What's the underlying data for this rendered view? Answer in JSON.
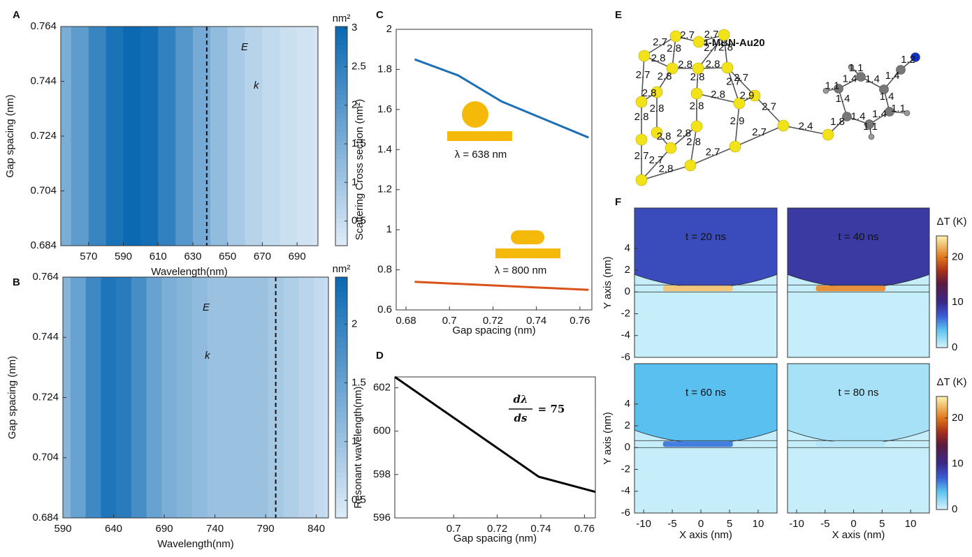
{
  "panel_labels": [
    "A",
    "B",
    "C",
    "D",
    "E",
    "F"
  ],
  "chart_data": [
    {
      "type": "heatmap",
      "xlabel": "Wavelength(nm)",
      "ylabel": "Gap spacing (nm)",
      "x": [
        555,
        565,
        575,
        585,
        595,
        605,
        615,
        625,
        635,
        645,
        655,
        665,
        675,
        685,
        695,
        702
      ],
      "values": [
        1.5,
        1.9,
        2.4,
        2.8,
        3.0,
        2.9,
        2.5,
        2.0,
        1.6,
        1.2,
        0.9,
        0.7,
        0.55,
        0.45,
        0.35,
        0.3
      ],
      "xlim": [
        554,
        702
      ],
      "ylim": [
        0.684,
        0.764
      ],
      "xticks": [
        570,
        590,
        610,
        630,
        650,
        670,
        690
      ],
      "yticks": [
        0.684,
        0.704,
        0.724,
        0.744,
        0.764
      ],
      "marker": 638,
      "field_labels": [
        "E",
        "k"
      ],
      "colorbar": {
        "label": "nm²",
        "lim": [
          0.18,
          3.02
        ],
        "ticks": [
          0.5,
          1,
          1.5,
          2,
          2.5,
          3
        ]
      }
    },
    {
      "type": "heatmap",
      "xlabel": "Wavelength(nm)",
      "ylabel": "Gap spacing (nm)",
      "x": [
        590,
        605,
        620,
        635,
        650,
        665,
        680,
        695,
        710,
        725,
        740,
        755,
        770,
        785,
        800,
        815,
        830,
        845,
        852
      ],
      "values": [
        1.2,
        1.5,
        1.9,
        2.2,
        2.1,
        1.8,
        1.5,
        1.3,
        1.2,
        1.1,
        1.0,
        1.0,
        1.0,
        1.0,
        0.9,
        0.8,
        0.7,
        0.6,
        0.55
      ],
      "xlim": [
        590,
        852
      ],
      "ylim": [
        0.684,
        0.764
      ],
      "xticks": [
        590,
        640,
        690,
        740,
        790,
        840
      ],
      "yticks": [
        0.684,
        0.704,
        0.724,
        0.744,
        0.764
      ],
      "marker": 800,
      "field_labels": [
        "E",
        "k"
      ],
      "colorbar": {
        "label": "nm²",
        "lim": [
          0.35,
          2.4
        ],
        "ticks": [
          0.5,
          1,
          1.5,
          2
        ]
      }
    },
    {
      "type": "line",
      "xlabel": "Gap spacing (nm)",
      "ylabel": "Scattering Cross section (nm²)",
      "x": [
        0.684,
        0.704,
        0.724,
        0.744,
        0.764
      ],
      "series": [
        {
          "color": "#1f6fb4",
          "values": [
            1.85,
            1.77,
            1.64,
            1.55,
            1.46
          ]
        },
        {
          "color": "#d95319",
          "values": [
            0.74,
            0.73,
            0.72,
            0.71,
            0.7
          ]
        }
      ],
      "annotations": [
        "λ = 638 nm",
        "λ = 800 nm"
      ],
      "xlim": [
        0.6755,
        0.7655
      ],
      "ylim": [
        0.6,
        2
      ],
      "xticks": [
        0.68,
        0.7,
        0.72,
        0.74,
        0.76
      ],
      "yticks": [
        0.6,
        0.8,
        1,
        1.2,
        1.4,
        1.6,
        1.8,
        2
      ]
    },
    {
      "type": "line",
      "xlabel": "Gap spacing (nm)",
      "ylabel": "Resonant wavelength(nm)",
      "x": [
        0.673,
        0.739,
        0.765
      ],
      "series": [
        {
          "color": "#000000",
          "values": [
            602.5,
            597.9,
            597.2
          ]
        }
      ],
      "slope": {
        "numerator": "dλ",
        "denominator": "ds",
        "rhs": "= 75"
      },
      "xlim": [
        0.673,
        0.765
      ],
      "ylim": [
        596,
        602.5
      ],
      "xticks": [
        0.7,
        0.72,
        0.74,
        0.76
      ],
      "yticks": [
        596,
        598,
        600,
        602
      ]
    },
    {
      "type": "field",
      "label": "t = 20 ns",
      "ylabel": "Y axis (nm)",
      "xlim": [
        -11.6,
        13.3
      ],
      "ylim": [
        -6,
        7.7
      ],
      "yticks": [
        -6,
        -4,
        -2,
        0,
        2,
        4
      ],
      "medium_dT": 8,
      "hotspot_dT": 23,
      "substrate_dT": 0.5
    },
    {
      "type": "field",
      "label": "t = 40 ns",
      "xlim": [
        -11.6,
        13.3
      ],
      "ylim": [
        -6,
        7.7
      ],
      "medium_dT": 9,
      "hotspot_dT": 21,
      "substrate_dT": 0.5,
      "colorbar": {
        "label": "ΔT (K)",
        "lim": [
          0,
          24.7
        ],
        "ticks": [
          0,
          10,
          20
        ]
      }
    },
    {
      "type": "field",
      "label": "t = 60 ns",
      "ylabel": "Y axis (nm)",
      "xlabel": "X axis (nm)",
      "xlim": [
        -11.6,
        13.3
      ],
      "ylim": [
        -6,
        7.7
      ],
      "xticks": [
        -10,
        -5,
        0,
        5,
        10
      ],
      "yticks": [
        -6,
        -4,
        -2,
        0,
        2,
        4
      ],
      "medium_dT": 4,
      "hotspot_dT": 6,
      "substrate_dT": 0.5
    },
    {
      "type": "field",
      "label": "t = 80 ns",
      "xlabel": "X axis (nm)",
      "xlim": [
        -11.6,
        13.3
      ],
      "ylim": [
        -6,
        7.7
      ],
      "xticks": [
        -10,
        -5,
        0,
        5,
        10
      ],
      "medium_dT": 1.5,
      "hotspot_dT": 1,
      "substrate_dT": 0.5,
      "colorbar": {
        "label": "ΔT (K)",
        "lim": [
          0,
          24.7
        ],
        "ticks": [
          0,
          10,
          20
        ]
      }
    }
  ],
  "molecule": {
    "title": "4-MBN-Au20",
    "bond_labels": [
      "2.7",
      "2.7",
      "2.7",
      "2.8",
      "2.8",
      "2.8",
      "2.8",
      "2.8",
      "2.7",
      "2.8",
      "2.8",
      "2.7",
      "2.9",
      "2.7",
      "2.8",
      "2.8",
      "2.8",
      "2.8",
      "2.8",
      "2.8",
      "2.9",
      "2.8",
      "2.7",
      "2.7",
      "2.7",
      "2.8",
      "2.7",
      "2.7",
      "2.8",
      "2.7",
      "2.4",
      "1.8",
      "1.4",
      "1.4",
      "1.4",
      "1.4",
      "1.4",
      "1.4",
      "1.4",
      "1.2",
      "1.1",
      "1.1",
      "1.1",
      "1.1"
    ]
  }
}
